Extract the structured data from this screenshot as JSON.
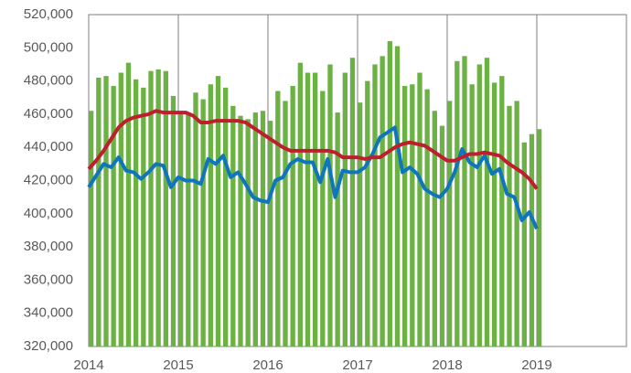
{
  "chart_data": {
    "type": "bar-line",
    "xlim": [
      2014,
      2020
    ],
    "xticks": [
      2014,
      2015,
      2016,
      2017,
      2018,
      2019
    ],
    "ylim": [
      320000,
      520000
    ],
    "yticks": [
      {
        "value": 320000,
        "label": "320,000"
      },
      {
        "value": 340000,
        "label": "340,000"
      },
      {
        "value": 360000,
        "label": "360,000"
      },
      {
        "value": 380000,
        "label": "380,000"
      },
      {
        "value": 400000,
        "label": "400,000"
      },
      {
        "value": 420000,
        "label": "420,000"
      },
      {
        "value": 440000,
        "label": "440,000"
      },
      {
        "value": 460000,
        "label": "460,000"
      },
      {
        "value": 480000,
        "label": "480,000"
      },
      {
        "value": 500000,
        "label": "500,000"
      },
      {
        "value": 520000,
        "label": "520,000"
      }
    ],
    "grid": "x",
    "x": [
      2014,
      2014.0833,
      2014.1667,
      2014.25,
      2014.3333,
      2014.4167,
      2014.5,
      2014.5833,
      2014.6667,
      2014.75,
      2014.8333,
      2014.9167,
      2015,
      2015.0833,
      2015.1667,
      2015.25,
      2015.3333,
      2015.4167,
      2015.5,
      2015.5833,
      2015.6667,
      2015.75,
      2015.8333,
      2015.9167,
      2016,
      2016.0833,
      2016.1667,
      2016.25,
      2016.3333,
      2016.4167,
      2016.5,
      2016.5833,
      2016.6667,
      2016.75,
      2016.8333,
      2016.9167,
      2017,
      2017.0833,
      2017.1667,
      2017.25,
      2017.3333,
      2017.4167,
      2017.5,
      2017.5833,
      2017.6667,
      2017.75,
      2017.8333,
      2017.9167,
      2018,
      2018.0833,
      2018.1667,
      2018.25,
      2018.3333,
      2018.4167,
      2018.5,
      2018.5833,
      2018.6667,
      2018.75,
      2018.8333,
      2018.9167,
      2019
    ],
    "series": [
      {
        "kind": "bar",
        "color": "#6bb144",
        "values": [
          462000,
          482000,
          483000,
          477000,
          485000,
          491000,
          481000,
          476000,
          486000,
          487000,
          486000,
          471000,
          462000,
          461000,
          473000,
          469000,
          478000,
          483000,
          476000,
          465000,
          459000,
          457000,
          461000,
          462000,
          456000,
          474000,
          468000,
          477000,
          491000,
          485000,
          485000,
          474000,
          490000,
          461000,
          485000,
          494000,
          467000,
          480000,
          490000,
          495000,
          504000,
          501000,
          477000,
          478000,
          485000,
          475000,
          462000,
          453000,
          468000,
          492000,
          495000,
          478000,
          490000,
          494000,
          479000,
          483000,
          465000,
          468000,
          443000,
          448000,
          451000
        ]
      },
      {
        "kind": "line",
        "color": "#0f75bc",
        "values": [
          416000,
          423000,
          430000,
          428000,
          434000,
          426000,
          425000,
          421000,
          425000,
          430000,
          429000,
          416000,
          422000,
          420000,
          420000,
          418000,
          433000,
          430000,
          435000,
          422000,
          425000,
          418000,
          410000,
          408000,
          407000,
          420000,
          422000,
          430000,
          433000,
          431000,
          431000,
          419000,
          433000,
          410000,
          426000,
          425000,
          425000,
          428000,
          436000,
          446000,
          449000,
          452000,
          425000,
          428000,
          424000,
          415000,
          412000,
          410000,
          415000,
          425000,
          439000,
          431000,
          428000,
          435000,
          424000,
          427000,
          412000,
          410000,
          396000,
          401000,
          391000
        ]
      },
      {
        "kind": "line",
        "color": "#be1e2d",
        "values": [
          427000,
          432000,
          438000,
          445000,
          452000,
          456000,
          458000,
          459000,
          460000,
          462000,
          461000,
          461000,
          461000,
          461000,
          459000,
          455000,
          455000,
          456000,
          456000,
          456000,
          456000,
          455000,
          452000,
          449000,
          446000,
          443000,
          440000,
          438000,
          438000,
          438000,
          438000,
          438000,
          438000,
          437000,
          434000,
          434000,
          434000,
          433000,
          434000,
          434000,
          437000,
          440000,
          442000,
          443000,
          442000,
          441000,
          438000,
          435000,
          432000,
          432000,
          434000,
          436000,
          436000,
          437000,
          436000,
          435000,
          431000,
          428000,
          425000,
          421000,
          415000
        ]
      }
    ]
  }
}
